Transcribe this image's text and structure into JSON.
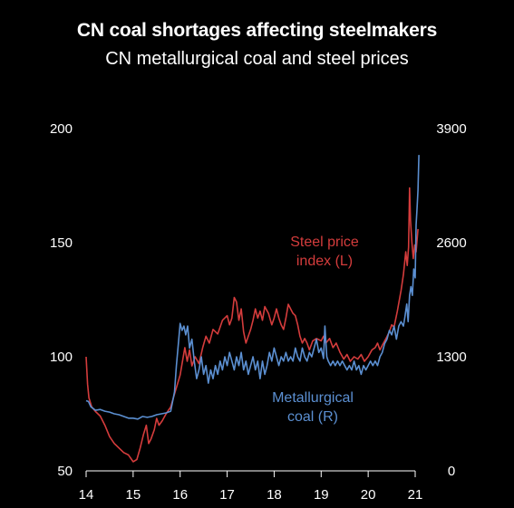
{
  "chart_data": {
    "type": "line",
    "title": "CN coal shortages affecting steelmakers",
    "subtitle": "CN metallurgical coal and steel prices",
    "x_ticks": [
      "14",
      "15",
      "16",
      "17",
      "18",
      "19",
      "20",
      "21"
    ],
    "x_range": [
      2014,
      2021
    ],
    "y_left": {
      "ticks": [
        "200",
        "150",
        "100",
        "50"
      ],
      "range": [
        50,
        200
      ]
    },
    "y_right": {
      "ticks": [
        "3900",
        "2600",
        "1300",
        "0"
      ],
      "range": [
        0,
        3900
      ]
    },
    "grid": false,
    "series": [
      {
        "name": "Steel price index (L)",
        "axis": "left",
        "color": "#d43c3c",
        "points": [
          [
            2014.0,
            100
          ],
          [
            2014.03,
            88
          ],
          [
            2014.06,
            82
          ],
          [
            2014.12,
            78
          ],
          [
            2014.2,
            76
          ],
          [
            2014.3,
            74
          ],
          [
            2014.4,
            70
          ],
          [
            2014.5,
            65
          ],
          [
            2014.6,
            62
          ],
          [
            2014.7,
            60
          ],
          [
            2014.8,
            58
          ],
          [
            2014.9,
            57
          ],
          [
            2015.0,
            54
          ],
          [
            2015.08,
            55
          ],
          [
            2015.15,
            60
          ],
          [
            2015.22,
            66
          ],
          [
            2015.28,
            70
          ],
          [
            2015.33,
            62
          ],
          [
            2015.38,
            64
          ],
          [
            2015.45,
            68
          ],
          [
            2015.5,
            73
          ],
          [
            2015.55,
            70
          ],
          [
            2015.62,
            72
          ],
          [
            2015.7,
            75
          ],
          [
            2015.8,
            78
          ],
          [
            2015.9,
            85
          ],
          [
            2016.0,
            92
          ],
          [
            2016.05,
            98
          ],
          [
            2016.1,
            104
          ],
          [
            2016.15,
            98
          ],
          [
            2016.2,
            103
          ],
          [
            2016.25,
            96
          ],
          [
            2016.32,
            100
          ],
          [
            2016.4,
            97
          ],
          [
            2016.48,
            104
          ],
          [
            2016.55,
            109
          ],
          [
            2016.62,
            106
          ],
          [
            2016.7,
            112
          ],
          [
            2016.8,
            110
          ],
          [
            2016.9,
            116
          ],
          [
            2017.0,
            118
          ],
          [
            2017.05,
            114
          ],
          [
            2017.1,
            117
          ],
          [
            2017.15,
            126
          ],
          [
            2017.2,
            124
          ],
          [
            2017.25,
            116
          ],
          [
            2017.3,
            121
          ],
          [
            2017.35,
            111
          ],
          [
            2017.4,
            106
          ],
          [
            2017.45,
            109
          ],
          [
            2017.5,
            112
          ],
          [
            2017.55,
            116
          ],
          [
            2017.6,
            121
          ],
          [
            2017.65,
            117
          ],
          [
            2017.7,
            120
          ],
          [
            2017.75,
            116
          ],
          [
            2017.8,
            122
          ],
          [
            2017.88,
            119
          ],
          [
            2017.95,
            114
          ],
          [
            2018.0,
            117
          ],
          [
            2018.05,
            121
          ],
          [
            2018.1,
            117
          ],
          [
            2018.15,
            114
          ],
          [
            2018.2,
            112
          ],
          [
            2018.25,
            117
          ],
          [
            2018.3,
            123
          ],
          [
            2018.35,
            121
          ],
          [
            2018.4,
            119
          ],
          [
            2018.45,
            118
          ],
          [
            2018.5,
            114
          ],
          [
            2018.55,
            109
          ],
          [
            2018.6,
            106
          ],
          [
            2018.65,
            108
          ],
          [
            2018.7,
            106
          ],
          [
            2018.75,
            103
          ],
          [
            2018.82,
            107
          ],
          [
            2018.9,
            108
          ],
          [
            2019.0,
            107
          ],
          [
            2019.05,
            109
          ],
          [
            2019.1,
            106
          ],
          [
            2019.18,
            108
          ],
          [
            2019.25,
            104
          ],
          [
            2019.32,
            106
          ],
          [
            2019.4,
            102
          ],
          [
            2019.48,
            99
          ],
          [
            2019.55,
            101
          ],
          [
            2019.62,
            98
          ],
          [
            2019.7,
            100
          ],
          [
            2019.78,
            99
          ],
          [
            2019.85,
            101
          ],
          [
            2019.92,
            98
          ],
          [
            2020.0,
            100
          ],
          [
            2020.08,
            103
          ],
          [
            2020.15,
            104
          ],
          [
            2020.2,
            106
          ],
          [
            2020.25,
            103
          ],
          [
            2020.3,
            105
          ],
          [
            2020.38,
            108
          ],
          [
            2020.45,
            111
          ],
          [
            2020.5,
            114
          ],
          [
            2020.55,
            113
          ],
          [
            2020.62,
            120
          ],
          [
            2020.7,
            129
          ],
          [
            2020.75,
            136
          ],
          [
            2020.8,
            146
          ],
          [
            2020.83,
            140
          ],
          [
            2020.86,
            148
          ],
          [
            2020.88,
            174
          ],
          [
            2020.9,
            160
          ],
          [
            2020.93,
            150
          ],
          [
            2020.96,
            143
          ],
          [
            2020.99,
            149
          ],
          [
            2021.02,
            146
          ],
          [
            2021.06,
            156
          ]
        ]
      },
      {
        "name": "Metallurgical coal (R)",
        "axis": "right",
        "color": "#5b8fd1",
        "points": [
          [
            2014.0,
            800
          ],
          [
            2014.05,
            790
          ],
          [
            2014.1,
            730
          ],
          [
            2014.2,
            690
          ],
          [
            2014.3,
            700
          ],
          [
            2014.4,
            680
          ],
          [
            2014.5,
            670
          ],
          [
            2014.6,
            650
          ],
          [
            2014.7,
            640
          ],
          [
            2014.8,
            620
          ],
          [
            2014.9,
            600
          ],
          [
            2015.0,
            600
          ],
          [
            2015.1,
            590
          ],
          [
            2015.2,
            620
          ],
          [
            2015.3,
            610
          ],
          [
            2015.4,
            620
          ],
          [
            2015.5,
            640
          ],
          [
            2015.6,
            650
          ],
          [
            2015.7,
            660
          ],
          [
            2015.8,
            680
          ],
          [
            2015.88,
            900
          ],
          [
            2015.92,
            1200
          ],
          [
            2015.97,
            1500
          ],
          [
            2016.0,
            1680
          ],
          [
            2016.04,
            1600
          ],
          [
            2016.08,
            1650
          ],
          [
            2016.12,
            1550
          ],
          [
            2016.16,
            1650
          ],
          [
            2016.2,
            1400
          ],
          [
            2016.25,
            1500
          ],
          [
            2016.3,
            1250
          ],
          [
            2016.35,
            1050
          ],
          [
            2016.4,
            1150
          ],
          [
            2016.45,
            1300
          ],
          [
            2016.5,
            1100
          ],
          [
            2016.55,
            1200
          ],
          [
            2016.6,
            1000
          ],
          [
            2016.65,
            1150
          ],
          [
            2016.7,
            1050
          ],
          [
            2016.75,
            1200
          ],
          [
            2016.8,
            1100
          ],
          [
            2016.85,
            1250
          ],
          [
            2016.9,
            1150
          ],
          [
            2016.95,
            1300
          ],
          [
            2017.0,
            1200
          ],
          [
            2017.05,
            1350
          ],
          [
            2017.1,
            1250
          ],
          [
            2017.15,
            1150
          ],
          [
            2017.2,
            1300
          ],
          [
            2017.25,
            1200
          ],
          [
            2017.3,
            1350
          ],
          [
            2017.35,
            1150
          ],
          [
            2017.4,
            1250
          ],
          [
            2017.45,
            1100
          ],
          [
            2017.5,
            1200
          ],
          [
            2017.55,
            1300
          ],
          [
            2017.6,
            1150
          ],
          [
            2017.65,
            1250
          ],
          [
            2017.7,
            1050
          ],
          [
            2017.75,
            1250
          ],
          [
            2017.8,
            1100
          ],
          [
            2017.85,
            1200
          ],
          [
            2017.9,
            1350
          ],
          [
            2017.95,
            1250
          ],
          [
            2018.0,
            1400
          ],
          [
            2018.05,
            1300
          ],
          [
            2018.1,
            1200
          ],
          [
            2018.15,
            1300
          ],
          [
            2018.2,
            1250
          ],
          [
            2018.25,
            1350
          ],
          [
            2018.3,
            1250
          ],
          [
            2018.35,
            1300
          ],
          [
            2018.4,
            1250
          ],
          [
            2018.45,
            1400
          ],
          [
            2018.5,
            1300
          ],
          [
            2018.55,
            1250
          ],
          [
            2018.6,
            1400
          ],
          [
            2018.65,
            1300
          ],
          [
            2018.7,
            1250
          ],
          [
            2018.75,
            1350
          ],
          [
            2018.8,
            1300
          ],
          [
            2018.85,
            1400
          ],
          [
            2018.9,
            1500
          ],
          [
            2018.95,
            1350
          ],
          [
            2019.0,
            1400
          ],
          [
            2019.05,
            1280
          ],
          [
            2019.08,
            1650
          ],
          [
            2019.12,
            1300
          ],
          [
            2019.15,
            1250
          ],
          [
            2019.2,
            1200
          ],
          [
            2019.25,
            1250
          ],
          [
            2019.3,
            1200
          ],
          [
            2019.35,
            1250
          ],
          [
            2019.4,
            1200
          ],
          [
            2019.45,
            1250
          ],
          [
            2019.5,
            1200
          ],
          [
            2019.55,
            1150
          ],
          [
            2019.6,
            1200
          ],
          [
            2019.65,
            1150
          ],
          [
            2019.7,
            1250
          ],
          [
            2019.75,
            1150
          ],
          [
            2019.8,
            1200
          ],
          [
            2019.85,
            1100
          ],
          [
            2019.9,
            1200
          ],
          [
            2019.95,
            1150
          ],
          [
            2020.0,
            1200
          ],
          [
            2020.05,
            1250
          ],
          [
            2020.1,
            1200
          ],
          [
            2020.15,
            1250
          ],
          [
            2020.2,
            1200
          ],
          [
            2020.25,
            1300
          ],
          [
            2020.3,
            1350
          ],
          [
            2020.35,
            1450
          ],
          [
            2020.4,
            1500
          ],
          [
            2020.45,
            1600
          ],
          [
            2020.5,
            1550
          ],
          [
            2020.55,
            1650
          ],
          [
            2020.6,
            1500
          ],
          [
            2020.65,
            1650
          ],
          [
            2020.7,
            1700
          ],
          [
            2020.75,
            1650
          ],
          [
            2020.78,
            1750
          ],
          [
            2020.82,
            1900
          ],
          [
            2020.85,
            1700
          ],
          [
            2020.88,
            2000
          ],
          [
            2020.91,
            2100
          ],
          [
            2020.94,
            2000
          ],
          [
            2020.97,
            2300
          ],
          [
            2021.0,
            2200
          ],
          [
            2021.02,
            2800
          ],
          [
            2021.04,
            3000
          ],
          [
            2021.06,
            3200
          ],
          [
            2021.08,
            3600
          ]
        ]
      }
    ],
    "annotations": [
      {
        "lines": [
          "Steel price",
          "index (L)"
        ],
        "color": "#d43c3c"
      },
      {
        "lines": [
          "Metallurgical",
          "coal (R)"
        ],
        "color": "#5b8fd1"
      }
    ]
  }
}
